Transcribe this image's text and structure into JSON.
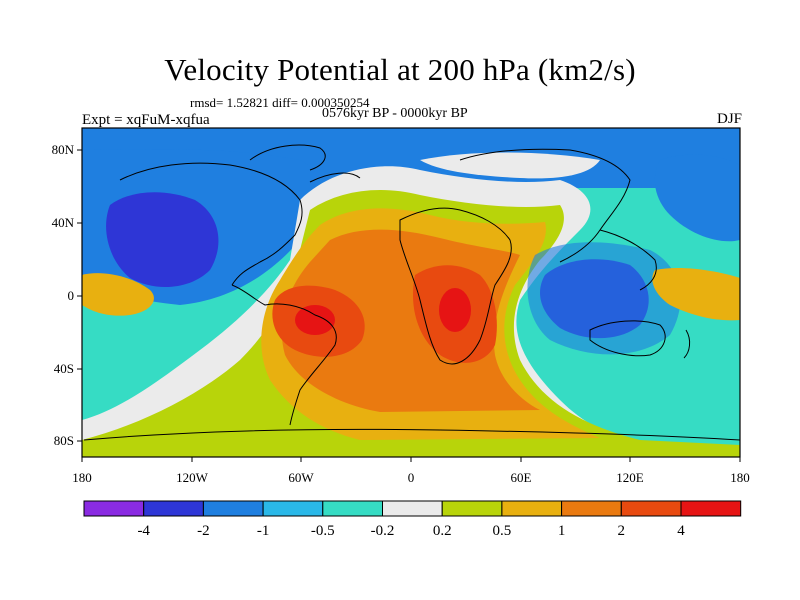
{
  "title": "Velocity Potential at 200 hPa (km2/s)",
  "stats": "rmsd= 1.52821 diff= 0.000350254",
  "period": "0576kyr BP - 0000kyr BP",
  "expt": "Expt = xqFuM-xqfua",
  "season": "DJF",
  "x_ticks": [
    "180",
    "120W",
    "60W",
    "0",
    "60E",
    "120E",
    "180"
  ],
  "y_ticks": [
    "80N",
    "40N",
    "0",
    "40S",
    "80S"
  ],
  "colorbar": {
    "colors": [
      "#8a2be2",
      "#2e36d6",
      "#1f7fe0",
      "#2ab8e8",
      "#36dcc4",
      "#ebebeb",
      "#b8d40a",
      "#e8b010",
      "#ea7a10",
      "#e84a10",
      "#e61414"
    ],
    "labels": [
      "-4",
      "-2",
      "-1",
      "-0.5",
      "-0.2",
      "0.2",
      "0.5",
      "1",
      "2",
      "4"
    ]
  },
  "map": {
    "projection": "cylindrical equidistant",
    "lon_range": [
      -180,
      180
    ],
    "lat_range": [
      -90,
      90
    ],
    "field_pattern": "positive anomaly over South America and Africa, negative anomaly over North Pacific and Indo-Pacific"
  }
}
